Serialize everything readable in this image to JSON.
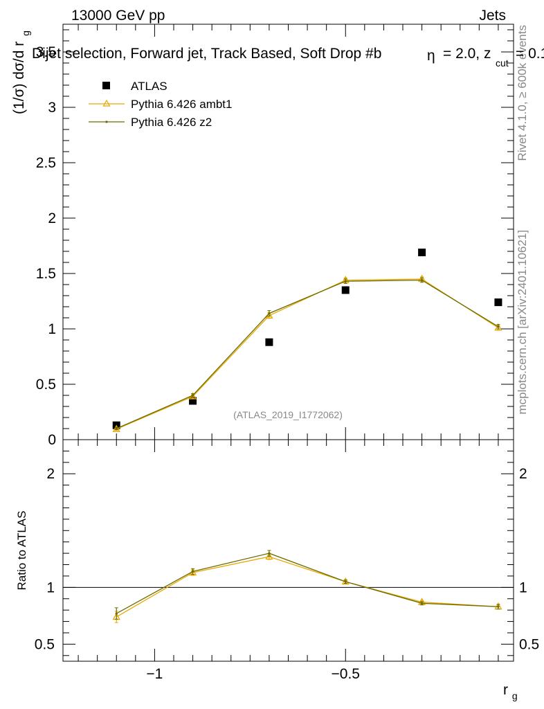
{
  "header": {
    "left": "13000 GeV pp",
    "right": "Jets",
    "plot_title": "Dijet selection, Forward jet, Track Based, Soft Drop #b",
    "plot_title_tail": "= 2.0, z",
    "plot_title_sub": "cut",
    "plot_title_end": "= 0.1",
    "eta_symbol": "η"
  },
  "side_text": {
    "rivet": "Rivet 4.1.0, ≥ 600k events",
    "mcplots": "mcplots.cern.ch [arXiv:2401.10621]"
  },
  "watermark": "(ATLAS_2019_I1772062)",
  "legend": {
    "atlas": "ATLAS",
    "ambt1": "Pythia 6.426 ambt1",
    "z2": "Pythia 6.426 z2"
  },
  "colors": {
    "ambt1": "#e8a800",
    "z2": "#6b6b00",
    "data": "#000000"
  },
  "chart_data": [
    {
      "type": "line",
      "title": "Dijet selection, Forward jet, Track Based, Soft Drop",
      "ylabel_main": "(1/σ) dσ/d r",
      "ylabel_sub": "g",
      "xlabel": "r",
      "xlabel_sub": "g",
      "xlim": [
        -1.24,
        -0.06
      ],
      "ylim": [
        0,
        3.75
      ],
      "yticks": [
        0,
        0.5,
        1,
        1.5,
        2,
        2.5,
        3,
        3.5
      ],
      "ytick_labels": [
        "0",
        "0.5",
        "1",
        "1.5",
        "2",
        "2.5",
        "3",
        "3.5"
      ],
      "x": [
        -1.1,
        -0.9,
        -0.7,
        -0.5,
        -0.3,
        -0.1
      ],
      "series": [
        {
          "name": "ATLAS",
          "values": [
            0.13,
            0.35,
            0.88,
            1.35,
            1.69,
            1.24
          ],
          "errors": [
            0.02,
            0.02,
            0.02,
            0.02,
            0.02,
            0.02
          ]
        },
        {
          "name": "Pythia 6.426 ambt1",
          "values": [
            0.095,
            0.39,
            1.12,
            1.44,
            1.45,
            1.01
          ],
          "errors": [
            0.01,
            0.015,
            0.025,
            0.02,
            0.02,
            0.02
          ]
        },
        {
          "name": "Pythia 6.426 z2",
          "values": [
            0.1,
            0.4,
            1.14,
            1.43,
            1.44,
            1.02
          ],
          "errors": [
            0.01,
            0.015,
            0.025,
            0.02,
            0.02,
            0.02
          ]
        }
      ]
    },
    {
      "type": "line",
      "ylabel": "Ratio to ATLAS",
      "xlabel": "r",
      "xlabel_sub": "g",
      "xlim": [
        -1.24,
        -0.06
      ],
      "ylim": [
        0.35,
        2.3
      ],
      "yticks": [
        0.5,
        1,
        2
      ],
      "ytick_labels": [
        "0.5",
        "1",
        "2"
      ],
      "xticks": [
        -1,
        -0.5
      ],
      "xtick_labels": [
        "−1",
        "−0.5"
      ],
      "reference_line": 1,
      "x": [
        -1.1,
        -0.9,
        -0.7,
        -0.5,
        -0.3,
        -0.1
      ],
      "series": [
        {
          "name": "Pythia 6.426 ambt1",
          "values": [
            0.74,
            1.13,
            1.27,
            1.05,
            0.87,
            0.83
          ],
          "errors": [
            0.05,
            0.025,
            0.025,
            0.015,
            0.015,
            0.02
          ]
        },
        {
          "name": "Pythia 6.426 z2",
          "values": [
            0.77,
            1.14,
            1.3,
            1.05,
            0.86,
            0.83
          ],
          "errors": [
            0.05,
            0.025,
            0.025,
            0.015,
            0.015,
            0.02
          ]
        }
      ]
    }
  ]
}
